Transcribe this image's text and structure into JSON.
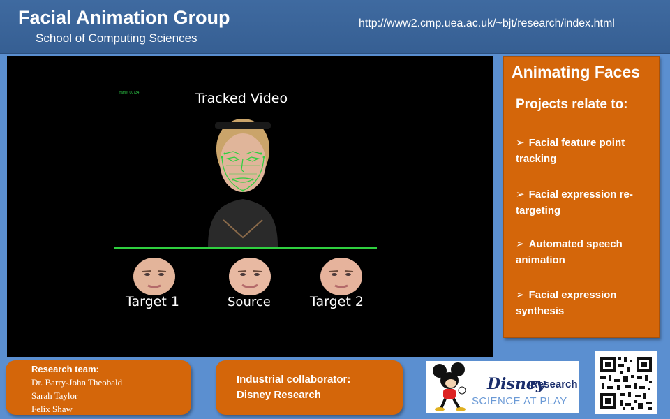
{
  "header": {
    "title": "Facial Animation Group",
    "subtitle": "School of Computing Sciences",
    "url": "http://www2.cmp.uea.ac.uk/~bjt/research/index.html"
  },
  "video": {
    "frame_counter": "frame: 00734",
    "caption_top": "Tracked Video",
    "labels": [
      "Target 1",
      "Source",
      "Target 2"
    ],
    "tracker_color": "#2fcf3f"
  },
  "panel": {
    "title": "Animating Faces",
    "subtitle": "Projects relate to:",
    "arrow": "➢",
    "items": [
      "Facial feature point tracking",
      "Facial expression re-targeting",
      "Automated speech animation",
      "Facial expression synthesis"
    ]
  },
  "team": {
    "heading": "Research team:",
    "members": [
      "Dr. Barry-John Theobald",
      "Sarah Taylor",
      "Felix Shaw"
    ]
  },
  "collab": {
    "line1": "Industrial collaborator:",
    "line2": "Disney Research"
  },
  "disney": {
    "word": "Disney",
    "research": "Research",
    "tagline": "SCIENCE AT PLAY"
  },
  "colors": {
    "accent": "#d4660a",
    "header": "#3f6aa0",
    "background": "#5b8fd0"
  }
}
